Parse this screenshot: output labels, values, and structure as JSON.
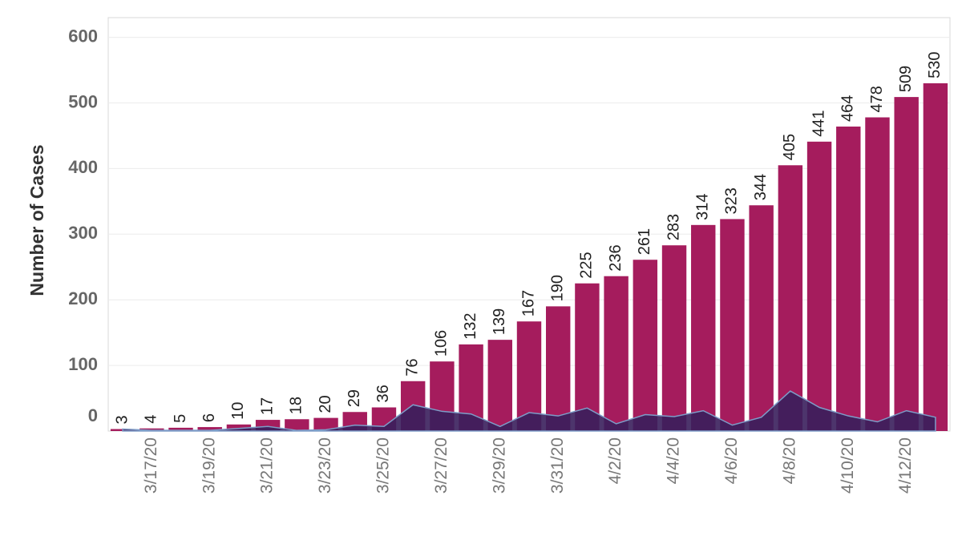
{
  "chart_data": {
    "type": "bar",
    "y_label": "Number of Cases",
    "categories": [
      null,
      "3/17/20",
      null,
      "3/19/20",
      null,
      "3/21/20",
      null,
      "3/23/20",
      null,
      "3/25/20",
      null,
      "3/27/20",
      null,
      "3/29/20",
      null,
      "3/31/20",
      null,
      "4/2/20",
      null,
      "4/4/20",
      null,
      "4/6/20",
      null,
      "4/8/20",
      null,
      "4/10/20",
      null,
      "4/12/20",
      null
    ],
    "series": [
      {
        "type": "bar",
        "color": "#a51c5d",
        "values": [
          3,
          4,
          5,
          6,
          10,
          17,
          18,
          20,
          29,
          36,
          76,
          106,
          132,
          139,
          167,
          190,
          225,
          236,
          261,
          283,
          314,
          323,
          344,
          405,
          441,
          464,
          478,
          509,
          530
        ]
      },
      {
        "type": "area",
        "color": "#3a1f5c",
        "values": [
          3,
          1,
          1,
          1,
          4,
          7,
          1,
          2,
          9,
          7,
          40,
          30,
          26,
          7,
          28,
          23,
          35,
          11,
          25,
          22,
          31,
          9,
          21,
          61,
          36,
          23,
          14,
          31,
          21
        ]
      }
    ],
    "ylim": [
      0,
      630
    ],
    "yticks": [
      0,
      100,
      200,
      300,
      400,
      500,
      600
    ],
    "grid": true
  }
}
